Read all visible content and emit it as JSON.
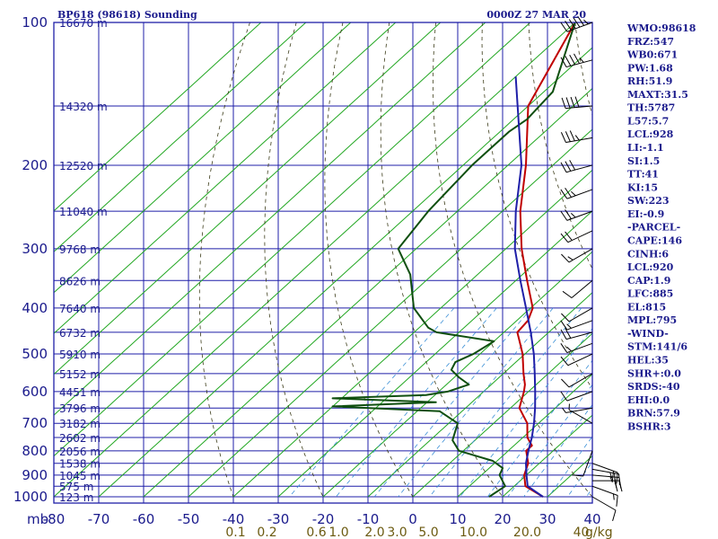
{
  "chart_data": {
    "type": "line",
    "title": "BP618 (98618) Sounding",
    "datetime": "0000Z 27 MAR 20",
    "pressure_label": "mb",
    "mixing_ratio_unit": "g/kg",
    "pressure_ticks": [
      "100",
      "200",
      "300",
      "400",
      "500",
      "600",
      "700",
      "800",
      "900",
      "1000"
    ],
    "height_ticks": [
      {
        "p": 100,
        "label": "16670 m"
      },
      {
        "p": 150,
        "label": "14320 m"
      },
      {
        "p": 200,
        "label": "12520 m"
      },
      {
        "p": 250,
        "label": "11040 m"
      },
      {
        "p": 300,
        "label": "9768 m"
      },
      {
        "p": 350,
        "label": "8626 m"
      },
      {
        "p": 400,
        "label": "7640 m"
      },
      {
        "p": 450,
        "label": "6732 m"
      },
      {
        "p": 500,
        "label": "5910 m"
      },
      {
        "p": 550,
        "label": "5152 m"
      },
      {
        "p": 600,
        "label": "4451 m"
      },
      {
        "p": 650,
        "label": "3796 m"
      },
      {
        "p": 700,
        "label": "3182 m"
      },
      {
        "p": 750,
        "label": "2602 m"
      },
      {
        "p": 800,
        "label": "2056 m"
      },
      {
        "p": 850,
        "label": "1538 m"
      },
      {
        "p": 900,
        "label": "1045 m"
      },
      {
        "p": 950,
        "label": "575 m"
      },
      {
        "p": 1000,
        "label": "123 m"
      }
    ],
    "temperature_ticks": [
      "-80",
      "-70",
      "-60",
      "-50",
      "-40",
      "-30",
      "-20",
      "-10",
      "0",
      "10",
      "20",
      "30",
      "40"
    ],
    "mixing_ratio_ticks": [
      {
        "label": "0.1",
        "t": -39.5
      },
      {
        "label": "0.2",
        "t": -32.5
      },
      {
        "label": "0.6",
        "t": -21.5
      },
      {
        "label": "1.0",
        "t": -16.5
      },
      {
        "label": "2.0",
        "t": -8.5
      },
      {
        "label": "3.0",
        "t": -3.5
      },
      {
        "label": "5.0",
        "t": 3.5
      },
      {
        "label": "10.0",
        "t": 13.5
      },
      {
        "label": "20.0",
        "t": 25.5
      },
      {
        "label": "40",
        "t": 37.5
      }
    ],
    "xlim": [
      -80,
      40
    ],
    "ylim": [
      1000,
      100
    ],
    "ylog": true,
    "grid": true,
    "series": [
      {
        "role": "temperature",
        "color": "#c00000",
        "points": [
          [
            100,
            -80
          ],
          [
            150,
            -70
          ],
          [
            200,
            -56
          ],
          [
            250,
            -46
          ],
          [
            300,
            -36.5
          ],
          [
            350,
            -27.5
          ],
          [
            400,
            -19.5
          ],
          [
            425,
            -17.5
          ],
          [
            450,
            -17
          ],
          [
            480,
            -13
          ],
          [
            500,
            -10.5
          ],
          [
            550,
            -5.5
          ],
          [
            580,
            -2.5
          ],
          [
            600,
            -1
          ],
          [
            650,
            2
          ],
          [
            700,
            7.5
          ],
          [
            750,
            11
          ],
          [
            780,
            14
          ],
          [
            800,
            14
          ],
          [
            850,
            17.5
          ],
          [
            900,
            19.5
          ],
          [
            950,
            22.5
          ],
          [
            1000,
            29
          ]
        ]
      },
      {
        "role": "dewpoint",
        "color": "#0f4f0f",
        "points": [
          [
            100,
            -80
          ],
          [
            140,
            -68
          ],
          [
            160,
            -67
          ],
          [
            170,
            -68
          ],
          [
            200,
            -68
          ],
          [
            250,
            -66.5
          ],
          [
            300,
            -64
          ],
          [
            340,
            -55
          ],
          [
            400,
            -46
          ],
          [
            440,
            -38
          ],
          [
            450,
            -35
          ],
          [
            470,
            -20
          ],
          [
            500,
            -21.5
          ],
          [
            520,
            -23.5
          ],
          [
            540,
            -22.5
          ],
          [
            560,
            -19
          ],
          [
            580,
            -15
          ],
          [
            600,
            -18
          ],
          [
            610,
            -22
          ],
          [
            620,
            -42
          ],
          [
            632,
            -18
          ],
          [
            645,
            -40
          ],
          [
            660,
            -15
          ],
          [
            700,
            -8
          ],
          [
            760,
            -5
          ],
          [
            800,
            -1
          ],
          [
            840,
            9
          ],
          [
            870,
            13
          ],
          [
            900,
            14
          ],
          [
            950,
            18
          ],
          [
            1000,
            17
          ]
        ]
      },
      {
        "role": "parcel",
        "color": "#1f1fa8",
        "points": [
          [
            130,
            -80
          ],
          [
            200,
            -57
          ],
          [
            250,
            -47
          ],
          [
            300,
            -38
          ],
          [
            350,
            -29
          ],
          [
            400,
            -21
          ],
          [
            450,
            -14
          ],
          [
            500,
            -8
          ],
          [
            550,
            -3
          ],
          [
            600,
            1.5
          ],
          [
            650,
            5.5
          ],
          [
            700,
            9
          ],
          [
            750,
            12
          ],
          [
            800,
            14.5
          ],
          [
            850,
            17
          ],
          [
            900,
            20
          ],
          [
            950,
            23
          ],
          [
            1000,
            29
          ]
        ]
      }
    ],
    "indices": [
      "WMO:98618",
      "FRZ:547",
      "WB0:671",
      "PW:1.68",
      "RH:51.9",
      "MAXT:31.5",
      "TH:5787",
      "L57:5.7",
      "LCL:928",
      "LI:-1.1",
      "SI:1.5",
      "TT:41",
      "KI:15",
      "SW:223",
      "EI:-0.9",
      "-PARCEL-",
      "CAPE:146",
      "CINH:6",
      "LCL:920",
      "CAP:1.9",
      "LFC:885",
      "EL:815",
      "MPL:795",
      "-WIND-",
      "STM:141/6",
      "HEL:35",
      "SHR+:0.0",
      "SRDS:-40",
      "EHI:0.0",
      "BRN:57.9",
      "BSHR:3"
    ],
    "wind_barbs": [
      {
        "p": 100,
        "dir": 250,
        "spd": 55
      },
      {
        "p": 120,
        "dir": 255,
        "spd": 45
      },
      {
        "p": 150,
        "dir": 265,
        "spd": 40
      },
      {
        "p": 175,
        "dir": 260,
        "spd": 35
      },
      {
        "p": 200,
        "dir": 255,
        "spd": 30
      },
      {
        "p": 225,
        "dir": 250,
        "spd": 25
      },
      {
        "p": 250,
        "dir": 250,
        "spd": 25
      },
      {
        "p": 275,
        "dir": 245,
        "spd": 20
      },
      {
        "p": 300,
        "dir": 240,
        "spd": 15
      },
      {
        "p": 350,
        "dir": 230,
        "spd": 10
      },
      {
        "p": 400,
        "dir": 240,
        "spd": 10
      },
      {
        "p": 425,
        "dir": 250,
        "spd": 15
      },
      {
        "p": 450,
        "dir": 255,
        "spd": 20
      },
      {
        "p": 475,
        "dir": 250,
        "spd": 15
      },
      {
        "p": 500,
        "dir": 245,
        "spd": 10
      },
      {
        "p": 550,
        "dir": 240,
        "spd": 10
      },
      {
        "p": 600,
        "dir": 250,
        "spd": 10
      },
      {
        "p": 650,
        "dir": 260,
        "spd": 5
      },
      {
        "p": 700,
        "dir": 300,
        "spd": 5
      },
      {
        "p": 800,
        "dir": 200,
        "spd": 10
      },
      {
        "p": 850,
        "dir": 110,
        "spd": 20
      },
      {
        "p": 875,
        "dir": 100,
        "spd": 25
      },
      {
        "p": 900,
        "dir": 95,
        "spd": 25
      },
      {
        "p": 925,
        "dir": 90,
        "spd": 20
      },
      {
        "p": 950,
        "dir": 110,
        "spd": 15
      },
      {
        "p": 1000,
        "dir": 120,
        "spd": 10
      }
    ]
  }
}
